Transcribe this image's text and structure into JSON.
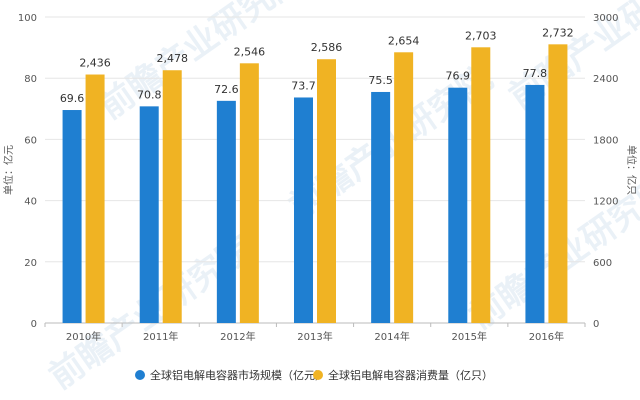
{
  "chart_data": {
    "type": "bar",
    "categories": [
      "2010年",
      "2011年",
      "2012年",
      "2013年",
      "2014年",
      "2015年",
      "2016年"
    ],
    "series": [
      {
        "name": "全球铝电解电容器市场规模（亿元）",
        "axis": "left",
        "color": "#1f7fd1",
        "values": [
          69.6,
          70.8,
          72.6,
          73.7,
          75.5,
          76.9,
          77.8
        ],
        "labels": [
          "69.6",
          "70.8",
          "72.6",
          "73.7",
          "75.5",
          "76.9",
          "77.8"
        ]
      },
      {
        "name": "全球铝电解电容器消费量（亿只）",
        "axis": "right",
        "color": "#f0b323",
        "values": [
          2436,
          2478,
          2546,
          2586,
          2654,
          2703,
          2732
        ],
        "labels": [
          "2,436",
          "2,478",
          "2,546",
          "2,586",
          "2,654",
          "2,703",
          "2,732"
        ]
      }
    ],
    "y_left": {
      "label": "单位：亿元",
      "ylim": [
        0,
        100
      ],
      "ticks": [
        "0",
        "20",
        "40",
        "60",
        "80",
        "100"
      ]
    },
    "y_right": {
      "label": "单位：亿只",
      "ylim": [
        0,
        3000
      ],
      "ticks": [
        "0",
        "600",
        "1200",
        "1800",
        "2400",
        "3000"
      ]
    },
    "grid": true,
    "legend_position": "bottom"
  }
}
